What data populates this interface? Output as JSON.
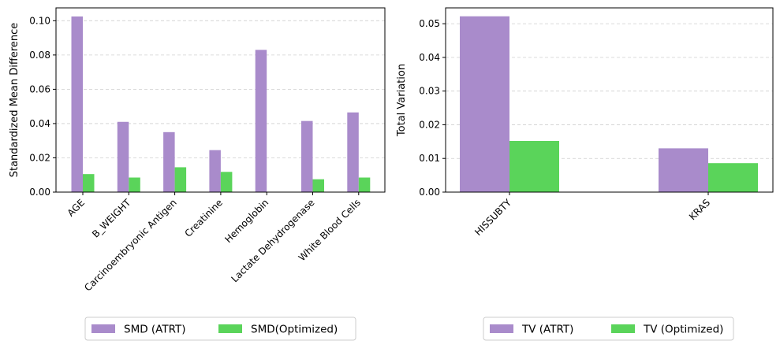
{
  "colors": {
    "atrt": "#a98bcb",
    "optimized": "#5ad45a"
  },
  "chart_data": [
    {
      "type": "bar",
      "title": "",
      "xlabel": "",
      "ylabel": "Standardized Mean Difference",
      "ylim": [
        0,
        0.1075
      ],
      "yticks": [
        0.0,
        0.02,
        0.04,
        0.06,
        0.08,
        0.1
      ],
      "ytick_labels": [
        "0.00",
        "0.02",
        "0.04",
        "0.06",
        "0.08",
        "0.10"
      ],
      "grid": "y-dashed",
      "legend_position": "bottom-center",
      "categories": [
        "AGE",
        "B_WEIGHT",
        "Carcinoembryonic Antigen",
        "Creatinine",
        "Hemoglobin",
        "Lactate Dehydrogenase",
        "White Blood Cells"
      ],
      "series": [
        {
          "name": "SMD (ATRT)",
          "color_key": "atrt",
          "values": [
            0.1025,
            0.041,
            0.035,
            0.0245,
            0.083,
            0.0415,
            0.0465
          ]
        },
        {
          "name": "SMD(Optimized)",
          "color_key": "optimized",
          "values": [
            0.0105,
            0.0085,
            0.0145,
            0.0118,
            0.0,
            0.0075,
            0.0085
          ]
        }
      ]
    },
    {
      "type": "bar",
      "title": "",
      "xlabel": "",
      "ylabel": "Total Variation",
      "ylim": [
        0,
        0.0547
      ],
      "yticks": [
        0.0,
        0.01,
        0.02,
        0.03,
        0.04,
        0.05
      ],
      "ytick_labels": [
        "0.00",
        "0.01",
        "0.02",
        "0.03",
        "0.04",
        "0.05"
      ],
      "grid": "y-dashed",
      "legend_position": "bottom-center",
      "categories": [
        "HISSUBTY",
        "KRAS"
      ],
      "series": [
        {
          "name": "TV (ATRT)",
          "color_key": "atrt",
          "values": [
            0.0522,
            0.013
          ]
        },
        {
          "name": "TV (Optimized)",
          "color_key": "optimized",
          "values": [
            0.0152,
            0.0086
          ]
        }
      ]
    }
  ]
}
